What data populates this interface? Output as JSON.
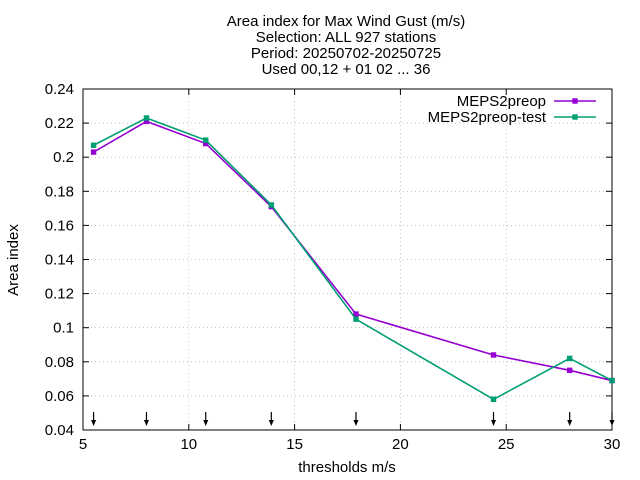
{
  "chart_data": {
    "type": "line",
    "title_lines": [
      "Area index  for Max Wind Gust (m/s)",
      "Selection: ALL    927 stations",
      "Period: 20250702-20250725",
      "Used 00,12 + 01 02 ... 36"
    ],
    "xlabel": "thresholds m/s",
    "ylabel": "Area index",
    "xlim": [
      5,
      30
    ],
    "ylim": [
      0.04,
      0.24
    ],
    "xticks": [
      5,
      10,
      15,
      20,
      25,
      30
    ],
    "xtick_labels": [
      "5",
      "10",
      "15",
      "20",
      "25",
      "30"
    ],
    "yticks": [
      0.04,
      0.06,
      0.08,
      0.1,
      0.12,
      0.14,
      0.16,
      0.18,
      0.2,
      0.22,
      0.24
    ],
    "ytick_labels": [
      "0.04",
      "0.06",
      "0.08",
      "0.1",
      "0.12",
      "0.14",
      "0.16",
      "0.18",
      "0.2",
      "0.22",
      "0.24"
    ],
    "grid": true,
    "legend_position": "top-right",
    "threshold_markers": [
      5.5,
      8,
      10.8,
      13.9,
      17.9,
      24.4,
      28,
      30
    ],
    "series": [
      {
        "name": "MEPS2preop",
        "color": "#9400d3",
        "x": [
          5.5,
          8,
          10.8,
          13.9,
          17.9,
          24.4,
          28,
          30
        ],
        "y": [
          0.203,
          0.221,
          0.208,
          0.171,
          0.108,
          0.084,
          0.075,
          0.069
        ]
      },
      {
        "name": "MEPS2preop-test",
        "color": "#009e73",
        "x": [
          5.5,
          8,
          10.8,
          13.9,
          17.9,
          24.4,
          28,
          30
        ],
        "y": [
          0.207,
          0.223,
          0.21,
          0.172,
          0.105,
          0.058,
          0.082,
          0.069
        ]
      }
    ]
  }
}
